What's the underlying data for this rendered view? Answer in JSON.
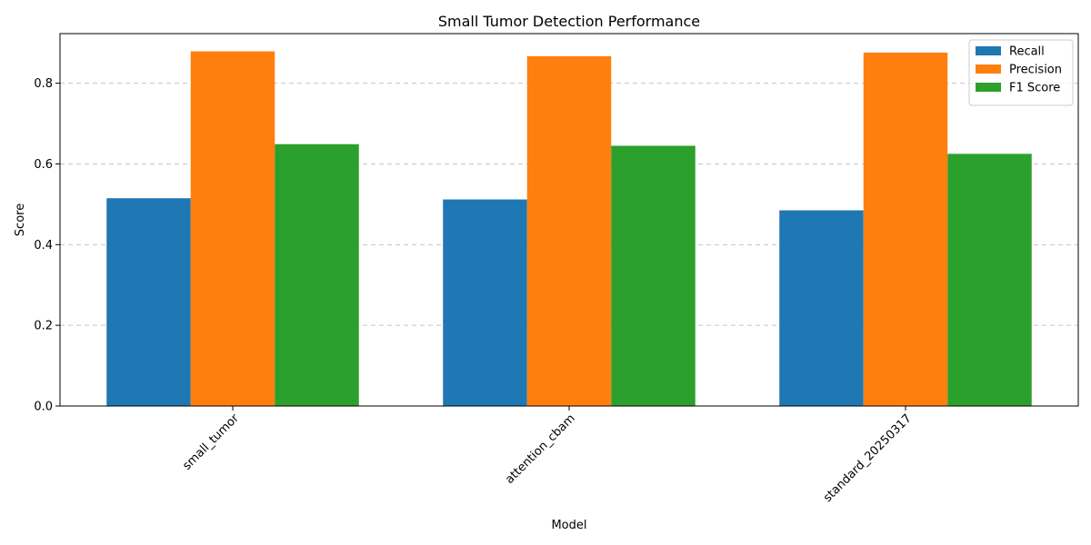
{
  "chart_data": {
    "type": "bar",
    "title": "Small Tumor Detection Performance",
    "xlabel": "Model",
    "ylabel": "Score",
    "categories": [
      "small_tumor",
      "attention_cbam",
      "standard_20250317"
    ],
    "series": [
      {
        "name": "Recall",
        "values": [
          0.515,
          0.512,
          0.485
        ],
        "color": "#1f77b4"
      },
      {
        "name": "Precision",
        "values": [
          0.879,
          0.867,
          0.876
        ],
        "color": "#ff7f0e"
      },
      {
        "name": "F1 Score",
        "values": [
          0.649,
          0.645,
          0.625
        ],
        "color": "#2ca02c"
      }
    ],
    "yticks": [
      "0.0",
      "0.2",
      "0.4",
      "0.6",
      "0.8"
    ],
    "ylim": [
      0,
      0.923
    ],
    "grid": "y-dashed",
    "legend": "top-right"
  }
}
